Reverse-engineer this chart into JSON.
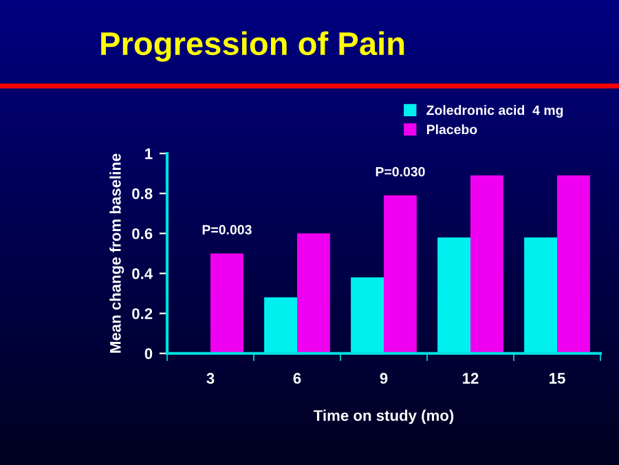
{
  "chart_data": {
    "type": "bar",
    "title": "Progression of Pain",
    "xlabel": "Time on study (mo)",
    "ylabel": "Mean change from baseline",
    "categories": [
      "3",
      "6",
      "9",
      "12",
      "15"
    ],
    "series": [
      {
        "name": "Zoledronic acid  4 mg",
        "color": "#00f0f0",
        "values": [
          null,
          0.28,
          0.38,
          0.58,
          0.58
        ]
      },
      {
        "name": "Placebo",
        "color": "#f000f0",
        "values": [
          0.5,
          0.6,
          0.79,
          0.89,
          0.89
        ]
      }
    ],
    "ylim": [
      0,
      1
    ],
    "yticks": [
      0,
      0.2,
      0.4,
      0.6,
      0.8,
      1
    ],
    "annotations": [
      {
        "text": "P=0.003",
        "x": "3",
        "y": 0.5
      },
      {
        "text": "P=0.030",
        "x": "9",
        "y": 0.79
      }
    ],
    "legend": "top right",
    "grid": false
  }
}
